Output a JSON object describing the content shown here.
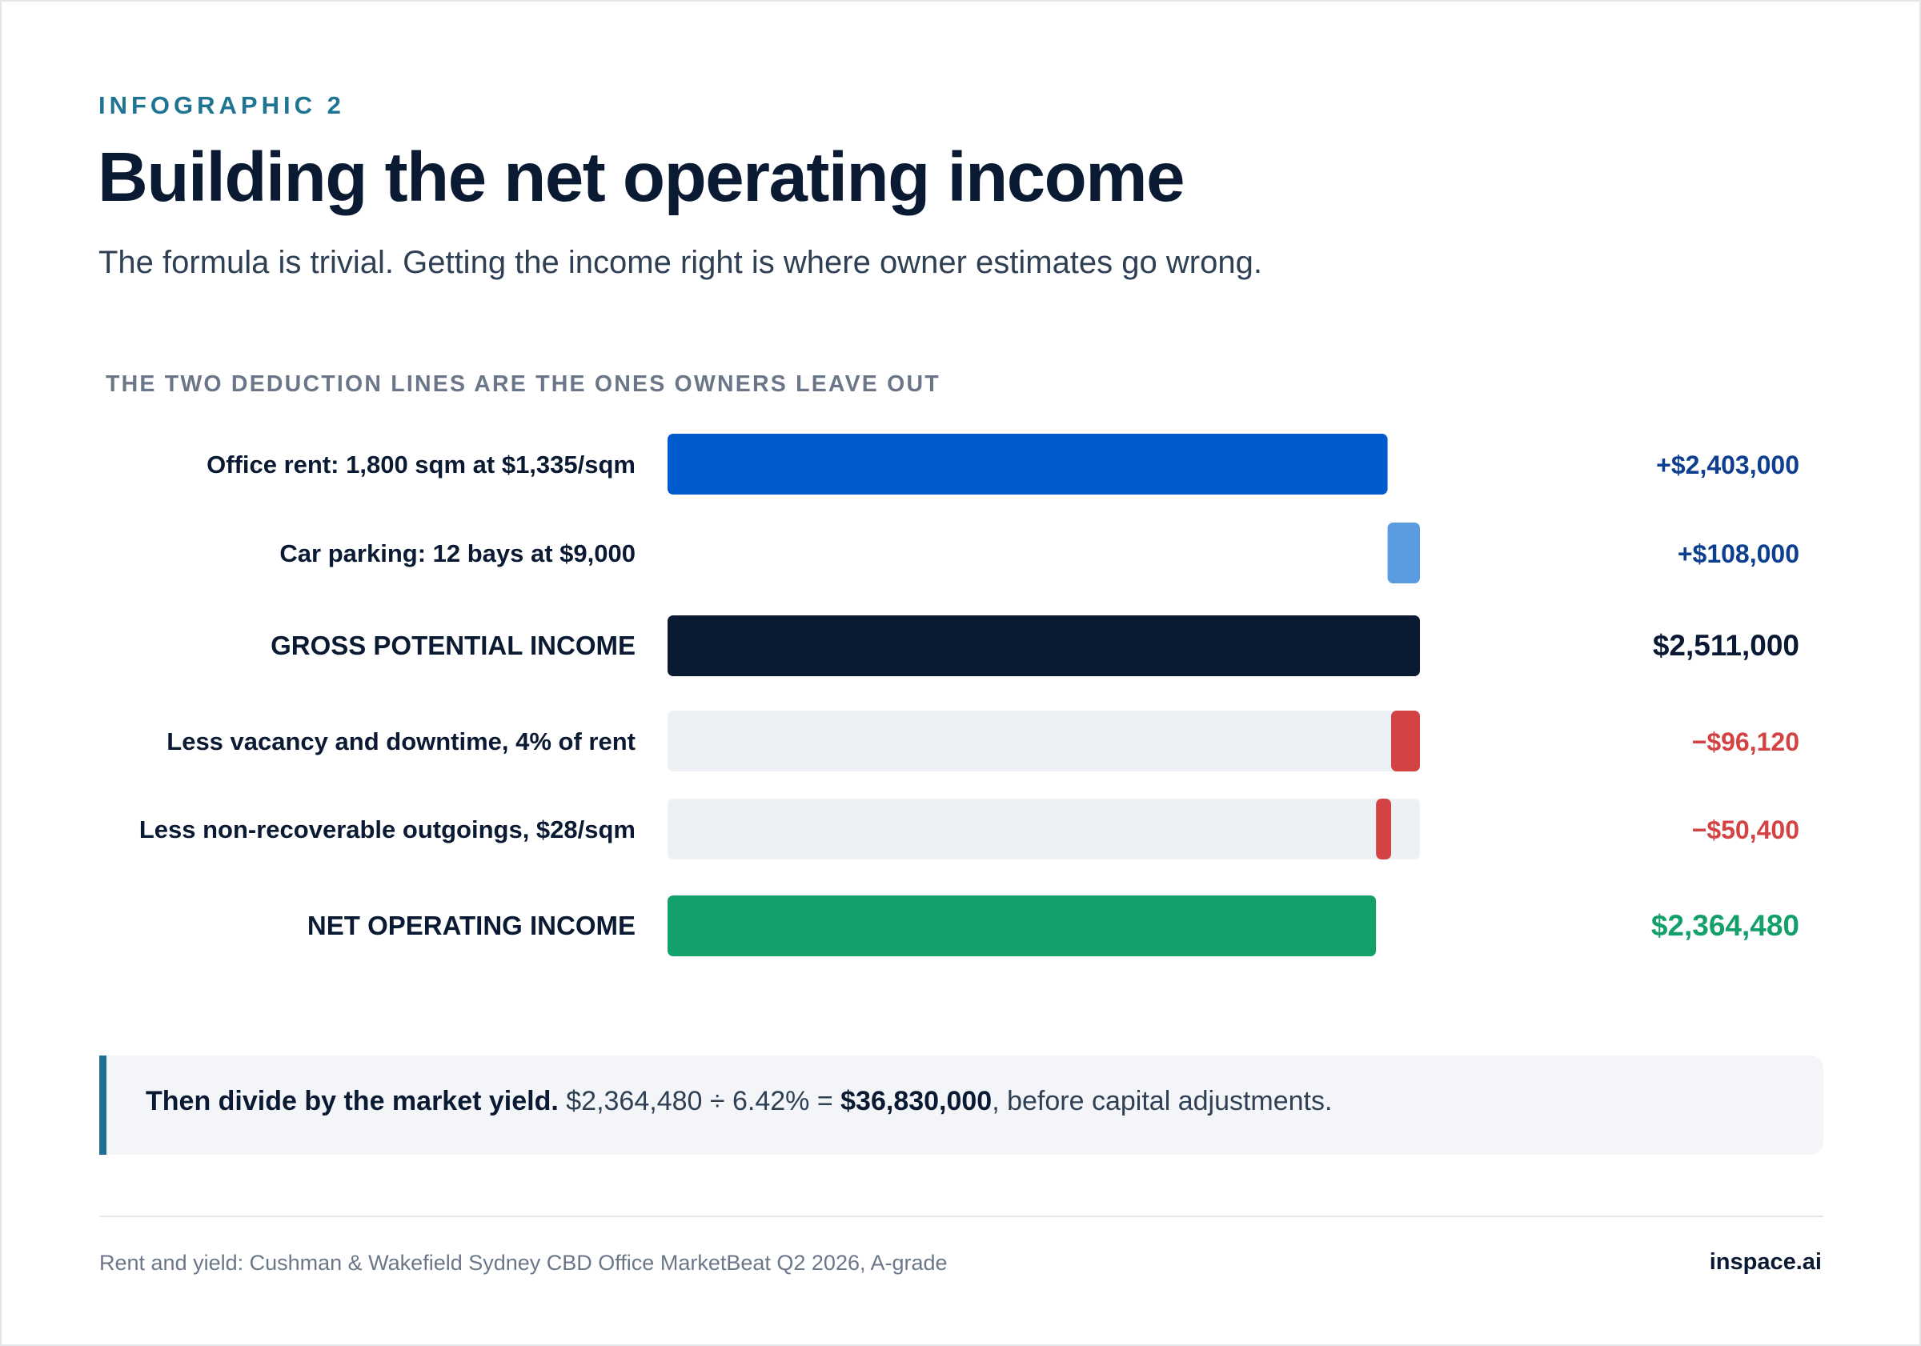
{
  "header": {
    "eyebrow": "INFOGRAPHIC 2",
    "title": "Building the net operating income",
    "subtitle": "The formula is trivial. Getting the income right is where owner estimates go wrong."
  },
  "section_label": "THE TWO DEDUCTION LINES ARE THE ONES OWNERS LEAVE OUT",
  "colors": {
    "increment_primary": "#005bcc",
    "increment_secondary": "#5b9be0",
    "total": "#0a1a32",
    "deduction": "#d34343",
    "net": "#13a06b",
    "track": "#edf0f4",
    "value_increment": "#0d3e8f",
    "value_total": "#0a1a32",
    "value_deduction": "#d34343",
    "value_net": "#13a06b"
  },
  "chart_data": {
    "type": "bar",
    "subtype": "waterfall",
    "scale_max": 2511000,
    "rows": [
      {
        "label": "Office rent: 1,800 sqm at $1,335/sqm",
        "value": 2403000,
        "display": "+$2,403,000",
        "kind": "increment",
        "start": 0,
        "end": 2403000,
        "color_key": "increment_primary",
        "value_color_key": "value_increment"
      },
      {
        "label": "Car parking: 12 bays at $9,000",
        "value": 108000,
        "display": "+$108,000",
        "kind": "increment",
        "start": 2403000,
        "end": 2511000,
        "color_key": "increment_secondary",
        "value_color_key": "value_increment"
      },
      {
        "label": "GROSS POTENTIAL INCOME",
        "value": 2511000,
        "display": "$2,511,000",
        "kind": "total",
        "start": 0,
        "end": 2511000,
        "color_key": "total",
        "value_color_key": "value_total"
      },
      {
        "label": "Less vacancy and downtime, 4% of rent",
        "value": -96120,
        "display": "−$96,120",
        "kind": "deduction",
        "start": 2414880,
        "end": 2511000,
        "color_key": "deduction",
        "value_color_key": "value_deduction"
      },
      {
        "label": "Less non-recoverable outgoings, $28/sqm",
        "value": -50400,
        "display": "−$50,400",
        "kind": "deduction",
        "start": 2364480,
        "end": 2414880,
        "color_key": "deduction",
        "value_color_key": "value_deduction"
      },
      {
        "label": "NET OPERATING INCOME",
        "value": 2364480,
        "display": "$2,364,480",
        "kind": "net",
        "start": 0,
        "end": 2364480,
        "color_key": "net",
        "value_color_key": "value_net"
      }
    ]
  },
  "callout": {
    "lead": "Then divide by the market yield.",
    "formula": " $2,364,480 ÷ 6.42% = ",
    "result": "$36,830,000",
    "tail": ", before capital adjustments."
  },
  "footer": {
    "source": "Rent and yield: Cushman & Wakefield Sydney CBD Office MarketBeat Q2 2026, A-grade",
    "brand": "inspace.ai"
  }
}
